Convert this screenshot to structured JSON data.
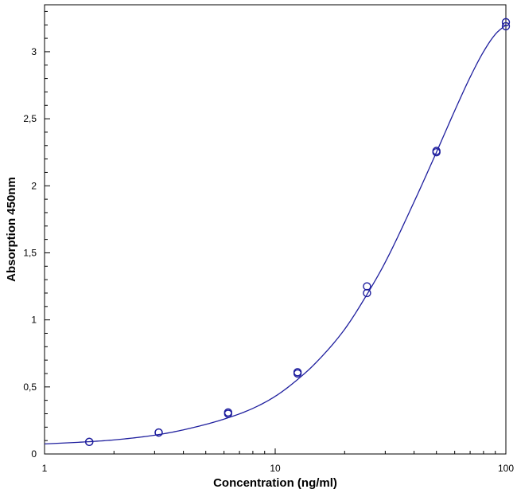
{
  "chart_data": {
    "type": "scatter",
    "title": "",
    "xlabel": "Concentration (ng/ml)",
    "ylabel": "Absorption 450nm",
    "x_scale": "log",
    "xlim": [
      1,
      100
    ],
    "ylim": [
      0,
      3.35
    ],
    "x_ticks": [
      1,
      10,
      100
    ],
    "x_tick_labels": [
      "1",
      "10",
      "100"
    ],
    "y_ticks": [
      0,
      0.5,
      1,
      1.5,
      2,
      2.5,
      3
    ],
    "y_tick_labels": [
      "0",
      "0,5",
      "1",
      "1,5",
      "2",
      "2,5",
      "3"
    ],
    "grid": false,
    "legend": "none",
    "series": [
      {
        "marker": "open-circle",
        "x": [
          1.5625,
          1.5625,
          3.125,
          3.125,
          6.25,
          6.25,
          12.5,
          12.5,
          25,
          25,
          50,
          50,
          100,
          100
        ],
        "y": [
          0.09,
          0.09,
          0.16,
          0.16,
          0.31,
          0.3,
          0.61,
          0.6,
          1.25,
          1.2,
          2.26,
          2.25,
          3.22,
          3.19
        ]
      }
    ],
    "fit_curve": {
      "model": "4PL",
      "x": [
        1,
        1.5,
        2,
        3,
        4,
        6,
        8,
        10,
        12,
        15,
        20,
        25,
        30,
        40,
        50,
        60,
        70,
        80,
        90,
        100
      ],
      "y": [
        0.075,
        0.09,
        0.105,
        0.14,
        0.18,
        0.26,
        0.34,
        0.43,
        0.53,
        0.68,
        0.93,
        1.19,
        1.43,
        1.88,
        2.25,
        2.56,
        2.81,
        3.0,
        3.13,
        3.2
      ]
    },
    "colors": {
      "marker": "#1f1f9e",
      "curve": "#1f1f9e",
      "axis": "#000000"
    }
  }
}
